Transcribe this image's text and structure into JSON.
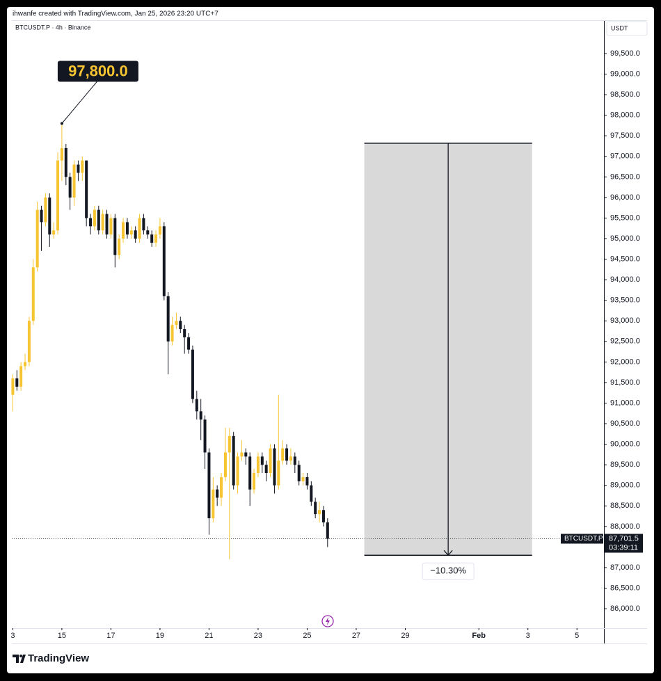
{
  "header": "ihwanfe created with TradingView.com, Jan 25, 2026 23:20 UTC+7",
  "chart_data": {
    "type": "candlestick",
    "title": "BTCUSDT.P · 4h · Binance",
    "currency": "USDT",
    "x": [
      13,
      13.167,
      13.333,
      13.5,
      13.667,
      13.833,
      14,
      14.167,
      14.333,
      14.5,
      14.667,
      14.833,
      15,
      15.167,
      15.333,
      15.5,
      15.667,
      15.833,
      16,
      16.167,
      16.333,
      16.5,
      16.667,
      16.833,
      17,
      17.167,
      17.333,
      17.5,
      17.667,
      17.833,
      18,
      18.167,
      18.333,
      18.5,
      18.667,
      18.833,
      19,
      19.167,
      19.333,
      19.5,
      19.667,
      19.833,
      20,
      20.167,
      20.333,
      20.5,
      20.667,
      20.833,
      21,
      21.167,
      21.333,
      21.5,
      21.667,
      21.833,
      22,
      22.167,
      22.333,
      22.5,
      22.667,
      22.833,
      23,
      23.167,
      23.333,
      23.5,
      23.667,
      23.833,
      24,
      24.167,
      24.333,
      24.5,
      24.667,
      24.833,
      25,
      25.167,
      25.333,
      25.5,
      25.667,
      25.833
    ],
    "open": [
      91200,
      91600,
      91400,
      91900,
      92000,
      93000,
      94300,
      95700,
      95400,
      96000,
      95100,
      95200,
      96900,
      97200,
      96500,
      96000,
      96800,
      96600,
      96900,
      95500,
      95300,
      95700,
      95200,
      95600,
      95100,
      95500,
      94600,
      95000,
      95400,
      95100,
      95200,
      95000,
      95500,
      95200,
      95100,
      94900,
      95100,
      95300,
      93600,
      92500,
      92900,
      93000,
      92800,
      92600,
      92300,
      91100,
      90800,
      90600,
      89800,
      88200,
      88900,
      88700,
      89200,
      89800,
      90200,
      89000,
      89700,
      89800,
      89700,
      88900,
      89300,
      89700,
      89500,
      89300,
      89900,
      89000,
      89600,
      89900,
      89600,
      89700,
      89500,
      89100,
      89200,
      89000,
      88600,
      88300,
      88400,
      88100
    ],
    "high": [
      91700,
      91800,
      92000,
      92200,
      93100,
      94500,
      95900,
      95800,
      96100,
      96100,
      95400,
      97100,
      97800,
      97300,
      96600,
      96900,
      96900,
      97000,
      96900,
      95600,
      95800,
      95800,
      95700,
      95700,
      95600,
      95600,
      95100,
      95500,
      95500,
      95300,
      95300,
      95600,
      95600,
      95300,
      95200,
      95200,
      95500,
      95400,
      93700,
      93100,
      93200,
      93100,
      92900,
      92700,
      92400,
      91300,
      91100,
      90700,
      89900,
      89200,
      89000,
      89300,
      90400,
      90400,
      90300,
      89800,
      90100,
      89900,
      89800,
      89400,
      89800,
      89800,
      89600,
      90000,
      90000,
      91200,
      90100,
      90000,
      89900,
      89800,
      89600,
      89300,
      89300,
      89100,
      88700,
      88600,
      88500,
      88200
    ],
    "low": [
      90800,
      91300,
      91300,
      91800,
      91900,
      92900,
      94200,
      94700,
      95300,
      94800,
      95000,
      95100,
      96400,
      96300,
      95700,
      95800,
      96400,
      96400,
      95300,
      95100,
      95200,
      95100,
      95100,
      95000,
      95000,
      94300,
      94500,
      94900,
      95000,
      95000,
      94900,
      94900,
      95100,
      95000,
      94800,
      94800,
      95000,
      93500,
      91700,
      92400,
      92800,
      92700,
      92200,
      92200,
      91000,
      90600,
      90100,
      89400,
      87800,
      88100,
      88500,
      88500,
      89100,
      87200,
      88900,
      88800,
      89600,
      89500,
      88500,
      88800,
      89200,
      89300,
      89100,
      89200,
      88800,
      88900,
      89500,
      89500,
      89500,
      89300,
      89000,
      89000,
      88900,
      88500,
      88200,
      88100,
      88000,
      87500
    ],
    "close": [
      91600,
      91400,
      91900,
      92000,
      93000,
      94300,
      95700,
      95400,
      96000,
      95100,
      95200,
      96900,
      97200,
      96500,
      96000,
      96800,
      96600,
      96900,
      95500,
      95300,
      95700,
      95200,
      95600,
      95100,
      95500,
      94600,
      95000,
      95400,
      95100,
      95200,
      95000,
      95500,
      95200,
      95100,
      94900,
      95100,
      95300,
      93600,
      92500,
      92900,
      93000,
      92800,
      92600,
      92300,
      91100,
      90800,
      90600,
      89800,
      88200,
      88900,
      88700,
      89200,
      89800,
      90200,
      89000,
      89700,
      89800,
      89700,
      88900,
      89300,
      89700,
      89500,
      89300,
      89900,
      89000,
      89600,
      89900,
      89600,
      89700,
      89500,
      89100,
      89200,
      89000,
      88600,
      88300,
      88400,
      88100,
      87701.5
    ],
    "up_color": "#f7c531",
    "down_color": "#131722",
    "xlim": [
      12.96,
      37.1
    ],
    "ylim": [
      85528,
      100295
    ],
    "xticks": [
      {
        "value": 13,
        "label": "3"
      },
      15,
      17,
      19,
      21,
      23,
      25,
      27,
      29,
      {
        "value": 32,
        "label": "Feb"
      },
      {
        "value": 34,
        "label": "3"
      },
      {
        "value": 36,
        "label": "5"
      }
    ],
    "yticks": [
      {
        "value": 86000,
        "label": "86,000.0"
      },
      {
        "value": 86500,
        "label": "86,500.0"
      },
      {
        "value": 87000,
        "label": "87,000.0"
      },
      {
        "value": 87500,
        "label": "87,500.0"
      },
      {
        "value": 88000,
        "label": "88,000.0"
      },
      {
        "value": 88500,
        "label": "88,500.0"
      },
      {
        "value": 89000,
        "label": "89,000.0"
      },
      {
        "value": 89500,
        "label": "89,500.0"
      },
      {
        "value": 90000,
        "label": "90,000.0"
      },
      {
        "value": 90500,
        "label": "90,500.0"
      },
      {
        "value": 91000,
        "label": "91,000.0"
      },
      {
        "value": 91500,
        "label": "91,500.0"
      },
      {
        "value": 92000,
        "label": "92,000.0"
      },
      {
        "value": 92500,
        "label": "92,500.0"
      },
      {
        "value": 93000,
        "label": "93,000.0"
      },
      {
        "value": 93500,
        "label": "93,500.0"
      },
      {
        "value": 94000,
        "label": "94,000.0"
      },
      {
        "value": 94500,
        "label": "94,500.0"
      },
      {
        "value": 95000,
        "label": "95,000.0"
      },
      {
        "value": 95500,
        "label": "95,500.0"
      },
      {
        "value": 96000,
        "label": "96,000.0"
      },
      {
        "value": 96500,
        "label": "96,500.0"
      },
      {
        "value": 97000,
        "label": "97,000.0"
      },
      {
        "value": 97500,
        "label": "97,500.0"
      },
      {
        "value": 98000,
        "label": "98,000.0"
      },
      {
        "value": 98500,
        "label": "98,500.0"
      },
      {
        "value": 99000,
        "label": "99,000.0"
      },
      {
        "value": 99500,
        "label": "99,500.0"
      }
    ],
    "annotation": {
      "value": 97800,
      "label": "97,800.0",
      "x": 15
    },
    "measure": {
      "from": 97320,
      "to": 87300,
      "x_start": 27.33,
      "x_end": 34.17,
      "label": "−10.30%"
    },
    "last_price": {
      "value": 87701.5,
      "label": "87,701.5",
      "symbol_tag": "BTCUSDT.P",
      "countdown": "03:39:11"
    }
  },
  "brand": "TradingView"
}
